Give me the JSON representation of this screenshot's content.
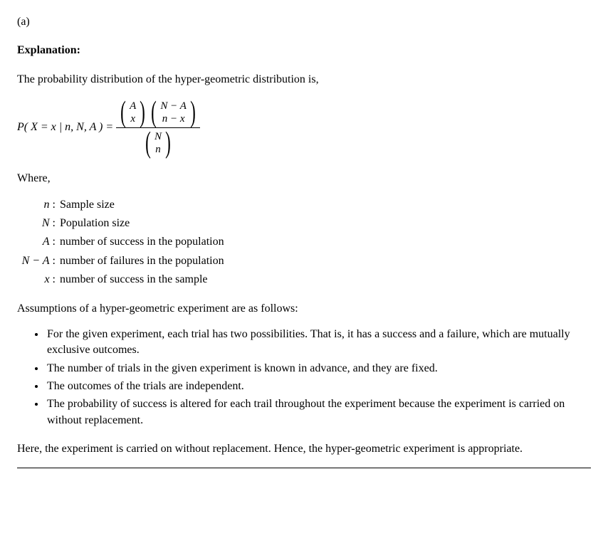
{
  "part_label": "(a)",
  "explanation_heading": "Explanation:",
  "intro": "The probability distribution of the hyper-geometric distribution is,",
  "formula_lhs_prefix": "P",
  "formula_lhs_inner": "( X = x | n, N, A ) =",
  "binom1_top": "A",
  "binom1_bot": "x",
  "binom2_top": "N − A",
  "binom2_bot": "n − x",
  "binom3_top": "N",
  "binom3_bot": "n",
  "where_label": "Where,",
  "defs": [
    {
      "sym": "n",
      "txt": "Sample size"
    },
    {
      "sym": "N",
      "txt": "Population size"
    },
    {
      "sym": "A",
      "txt": "number of success in the population"
    },
    {
      "sym": "N − A",
      "txt": "number of failures in the population"
    },
    {
      "sym": "x",
      "txt": "number of success in the sample"
    }
  ],
  "assump_intro": "Assumptions of a hyper-geometric experiment are as follows:",
  "assumptions": [
    "For the given experiment, each trial has two possibilities. That is, it has a success and a failure, which are mutually exclusive outcomes.",
    "The number of trials in the given experiment is known in advance, and they are fixed.",
    "The outcomes of the trials are independent.",
    "The probability of success is altered for each trail throughout the experiment because the experiment is carried on without replacement."
  ],
  "conclusion": "Here, the experiment is carried on without replacement. Hence, the hyper-geometric experiment is appropriate."
}
